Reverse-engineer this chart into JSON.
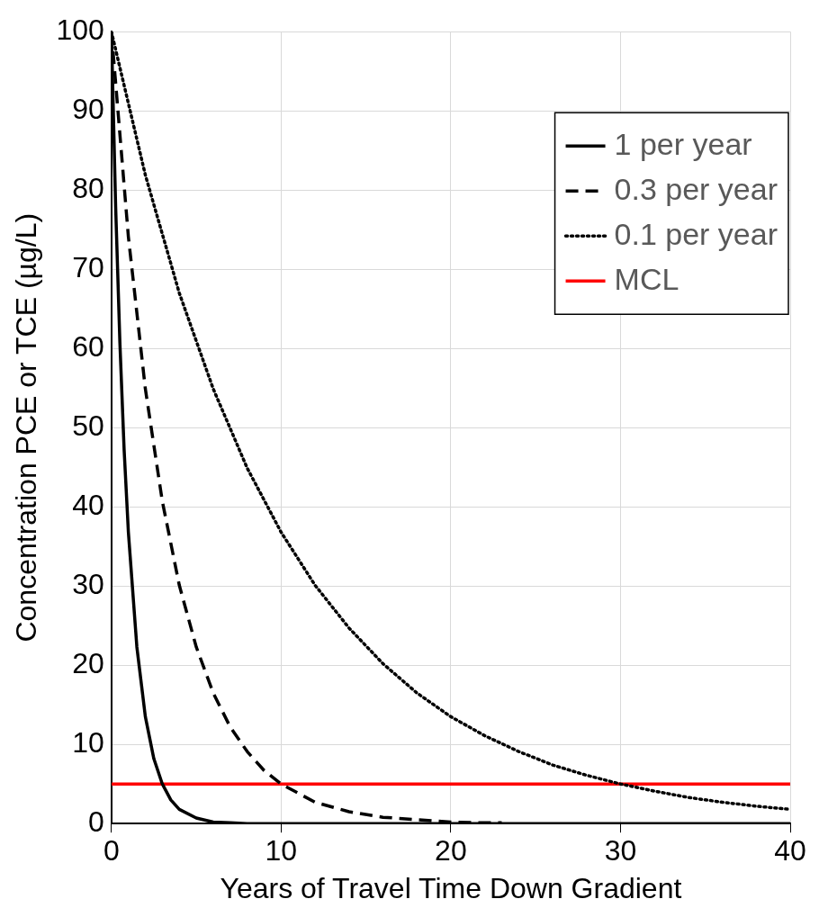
{
  "chart_data": {
    "type": "line",
    "xlabel": "Years of Travel Time Down Gradient",
    "ylabel": "Concentration PCE or TCE (µg/L)",
    "xlim": [
      0,
      40
    ],
    "xticks": [
      0,
      10,
      20,
      30,
      40
    ],
    "ylim": [
      0,
      100
    ],
    "yticks": [
      0,
      10,
      20,
      30,
      40,
      50,
      60,
      70,
      80,
      90,
      100
    ],
    "grid": true,
    "legend": "top right",
    "marker": "none",
    "series": [
      {
        "name": "1 per year",
        "color": "#000000",
        "line_style": "solid",
        "x": [
          0,
          0.25,
          0.5,
          0.75,
          1,
          1.5,
          2,
          2.5,
          3,
          3.5,
          4,
          5,
          6,
          7,
          8,
          10,
          15,
          20,
          30,
          40
        ],
        "values": [
          100,
          77.9,
          60.7,
          47.2,
          36.8,
          22.3,
          13.5,
          8.2,
          5.0,
          3.0,
          1.8,
          0.7,
          0.2,
          0.1,
          0,
          0,
          0,
          0,
          0,
          0
        ]
      },
      {
        "name": "0.3 per year",
        "color": "#000000",
        "line_style": "dashed",
        "x": [
          0,
          1,
          2,
          3,
          4,
          5,
          6,
          7,
          8,
          9,
          10,
          12,
          14,
          16,
          18,
          20,
          22,
          23
        ],
        "values": [
          100,
          74.1,
          54.9,
          40.7,
          30.1,
          22.3,
          16.5,
          12.2,
          9.1,
          6.7,
          5.0,
          2.7,
          1.5,
          0.8,
          0.5,
          0.2,
          0.1,
          0.1
        ]
      },
      {
        "name": "0.1 per year",
        "color": "#000000",
        "line_style": "dotted",
        "x": [
          0,
          2,
          4,
          6,
          8,
          10,
          12,
          14,
          16,
          18,
          20,
          22,
          24,
          26,
          28,
          30,
          32,
          34,
          36,
          38,
          40
        ],
        "values": [
          100,
          81.9,
          67.0,
          54.9,
          44.9,
          36.8,
          30.1,
          24.7,
          20.2,
          16.5,
          13.5,
          11.1,
          9.1,
          7.4,
          6.1,
          5.0,
          4.1,
          3.3,
          2.7,
          2.2,
          1.8
        ]
      },
      {
        "name": "MCL",
        "color": "#ff0000",
        "line_style": "solid",
        "x": [
          0,
          40
        ],
        "values": [
          5,
          5
        ]
      }
    ]
  }
}
